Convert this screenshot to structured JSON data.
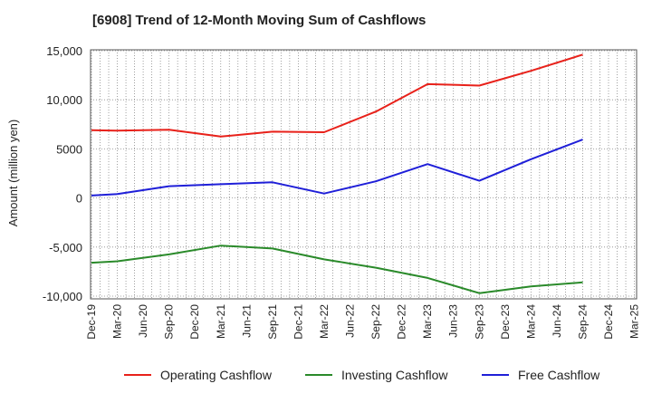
{
  "chart_data": {
    "type": "line",
    "title": "[6908]  Trend of 12-Month Moving Sum of Cashflows",
    "xlabel": "",
    "ylabel": "Amount (million yen)",
    "ylim": [
      -10000,
      15000
    ],
    "y_ticks": [
      15000,
      10000,
      5000,
      0,
      -5000,
      -10000
    ],
    "y_tick_labels": [
      "15,000",
      "10,000",
      "5000",
      "0",
      "-5,000",
      "-10,000"
    ],
    "x_tick_labels": [
      "Dec-19",
      "Mar-20",
      "Jun-20",
      "Sep-20",
      "Dec-20",
      "Mar-21",
      "Jun-21",
      "Sep-21",
      "Dec-21",
      "Mar-22",
      "Jun-22",
      "Sep-22",
      "Dec-22",
      "Mar-23",
      "Jun-23",
      "Sep-23",
      "Dec-23",
      "Mar-24",
      "Jun-24",
      "Sep-24",
      "Dec-24",
      "Mar-25"
    ],
    "grid": true,
    "legend_position": "bottom",
    "series": [
      {
        "name": "Operating Cashflow",
        "color": "#e8211a",
        "points": [
          {
            "x": "Dec-19",
            "y": 6900
          },
          {
            "x": "Mar-20",
            "y": 6850
          },
          {
            "x": "Sep-20",
            "y": 6950
          },
          {
            "x": "Mar-21",
            "y": 6250
          },
          {
            "x": "Sep-21",
            "y": 6750
          },
          {
            "x": "Mar-22",
            "y": 6700
          },
          {
            "x": "Sep-22",
            "y": 8800
          },
          {
            "x": "Mar-23",
            "y": 11600
          },
          {
            "x": "Sep-23",
            "y": 11450
          },
          {
            "x": "Mar-24",
            "y": 12950
          },
          {
            "x": "Sep-24",
            "y": 14600
          }
        ]
      },
      {
        "name": "Investing Cashflow",
        "color": "#2a8a2a",
        "points": [
          {
            "x": "Dec-19",
            "y": -6600
          },
          {
            "x": "Mar-20",
            "y": -6450
          },
          {
            "x": "Sep-20",
            "y": -5750
          },
          {
            "x": "Mar-21",
            "y": -4850
          },
          {
            "x": "Sep-21",
            "y": -5150
          },
          {
            "x": "Mar-22",
            "y": -6250
          },
          {
            "x": "Sep-22",
            "y": -7100
          },
          {
            "x": "Mar-23",
            "y": -8150
          },
          {
            "x": "Sep-23",
            "y": -9700
          },
          {
            "x": "Mar-24",
            "y": -9000
          },
          {
            "x": "Sep-24",
            "y": -8600
          }
        ]
      },
      {
        "name": "Free Cashflow",
        "color": "#1f1fd8",
        "points": [
          {
            "x": "Dec-19",
            "y": 250
          },
          {
            "x": "Mar-20",
            "y": 400
          },
          {
            "x": "Sep-20",
            "y": 1200
          },
          {
            "x": "Mar-21",
            "y": 1400
          },
          {
            "x": "Sep-21",
            "y": 1600
          },
          {
            "x": "Mar-22",
            "y": 450
          },
          {
            "x": "Sep-22",
            "y": 1700
          },
          {
            "x": "Mar-23",
            "y": 3450
          },
          {
            "x": "Sep-23",
            "y": 1750
          },
          {
            "x": "Mar-24",
            "y": 3950
          },
          {
            "x": "Sep-24",
            "y": 5950
          }
        ]
      }
    ]
  }
}
